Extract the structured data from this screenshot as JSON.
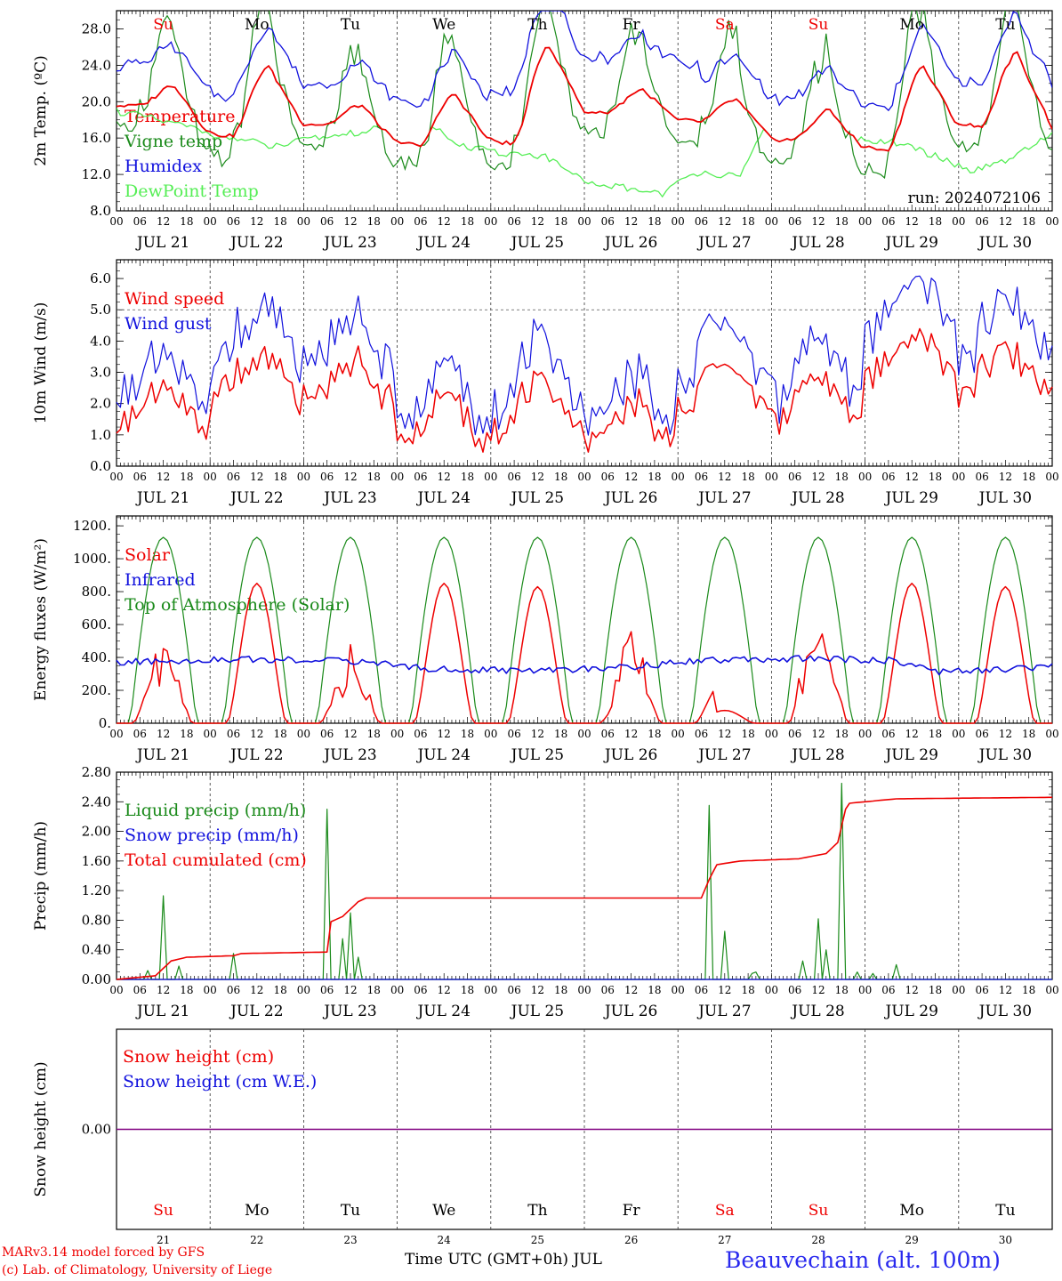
{
  "colors": {
    "red": "#ee0000",
    "green": "#1a8a1a",
    "lightgreen": "#55ee55",
    "blue": "#1111dd",
    "black": "#000000",
    "purple": "#800080"
  },
  "days": {
    "dates": [
      "JUL 21",
      "JUL 22",
      "JUL 23",
      "JUL 24",
      "JUL 25",
      "JUL 26",
      "JUL 27",
      "JUL 28",
      "JUL 29",
      "JUL 30"
    ],
    "weekdays": [
      "Su",
      "Mo",
      "Tu",
      "We",
      "Th",
      "Fr",
      "Sa",
      "Su",
      "Mo",
      "Tu"
    ],
    "weekday_colors": [
      "red",
      "black",
      "black",
      "black",
      "black",
      "black",
      "red",
      "red",
      "black",
      "black"
    ],
    "daynums": [
      "21",
      "22",
      "23",
      "24",
      "25",
      "26",
      "27",
      "28",
      "29",
      "30"
    ],
    "hour_ticks": [
      "00",
      "06",
      "12",
      "18"
    ]
  },
  "chart_data": [
    {
      "type": "line",
      "ylabel": "2m Temp. (ºC)",
      "ylim": [
        8,
        30
      ],
      "yticks": [
        "8.0",
        "12.0",
        "16.0",
        "20.0",
        "24.0",
        "28.0"
      ],
      "run_label": "run: 2024072106",
      "series": [
        {
          "name": "Temperature",
          "color": "red"
        },
        {
          "name": "Vigne temp",
          "color": "green"
        },
        {
          "name": "Humidex",
          "color": "blue"
        },
        {
          "name": "DewPoint Temp",
          "color": "lightgreen"
        }
      ]
    },
    {
      "type": "line",
      "ylabel": "10m Wind (m/s)",
      "ylim": [
        0,
        6.6
      ],
      "yticks": [
        "0.0",
        "1.0",
        "2.0",
        "3.0",
        "4.0",
        "5.0",
        "6.0"
      ],
      "series": [
        {
          "name": "Wind speed",
          "color": "red"
        },
        {
          "name": "Wind gust",
          "color": "blue"
        }
      ]
    },
    {
      "type": "line",
      "ylabel": "Energy fluxes (W/m²)",
      "ylim": [
        0,
        1260
      ],
      "yticks": [
        "0.",
        "200.",
        "400.",
        "600.",
        "800.",
        "1000.",
        "1200."
      ],
      "series": [
        {
          "name": "Solar",
          "color": "red"
        },
        {
          "name": "Infrared",
          "color": "blue"
        },
        {
          "name": "Top of Atmosphere (Solar)",
          "color": "green"
        }
      ]
    },
    {
      "type": "line",
      "ylabel": "Precip (mm/h)",
      "ylim": [
        0,
        2.8
      ],
      "yticks": [
        "0.00",
        "0.40",
        "0.80",
        "1.20",
        "1.60",
        "2.00",
        "2.40",
        "2.80"
      ],
      "series": [
        {
          "name": "Liquid precip (mm/h)",
          "color": "green"
        },
        {
          "name": "Snow precip (mm/h)",
          "color": "blue"
        },
        {
          "name": "Total cumulated (cm)",
          "color": "red"
        }
      ]
    },
    {
      "type": "line",
      "ylabel": "Snow height (cm)",
      "yticks": [
        "0.00"
      ],
      "series": [
        {
          "name": "Snow height (cm)",
          "color": "red"
        },
        {
          "name": "Snow height (cm W.E.)",
          "color": "blue"
        }
      ]
    }
  ],
  "footer": {
    "model": "MARv3.14 model forced by GFS",
    "credit": "(c) Lab. of Climatology, University of Liege",
    "xlabel": "Time UTC (GMT+0h) JUL",
    "station": "Beauvechain (alt. 100m)"
  }
}
